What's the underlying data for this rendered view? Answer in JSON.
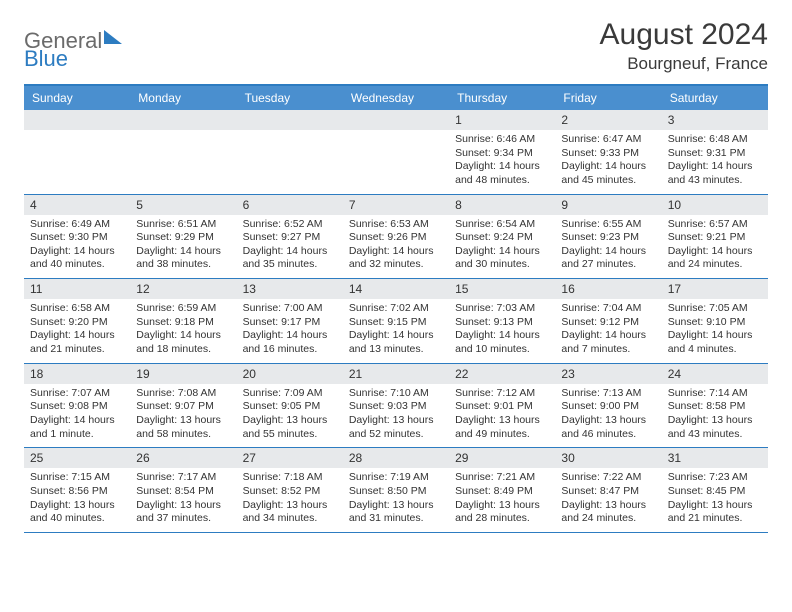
{
  "logo": {
    "part1": "General",
    "part2": "Blue"
  },
  "title": "August 2024",
  "location": "Bourgneuf, France",
  "colors": {
    "header_bar": "#4a8fcf",
    "rule": "#2d7cc1",
    "daynum_bg": "#e7e9eb",
    "text": "#333333",
    "title_text": "#3a3a3a",
    "logo_gray": "#6b6b6b",
    "logo_blue": "#2d7cc1",
    "background": "#ffffff"
  },
  "typography": {
    "title_fontsize": 30,
    "location_fontsize": 17,
    "dow_fontsize": 12,
    "daynum_fontsize": 12,
    "details_fontsize": 10.5
  },
  "days_of_week": [
    "Sunday",
    "Monday",
    "Tuesday",
    "Wednesday",
    "Thursday",
    "Friday",
    "Saturday"
  ],
  "weeks": [
    [
      {
        "daynum": "",
        "sunrise": "",
        "sunset": "",
        "daylight": ""
      },
      {
        "daynum": "",
        "sunrise": "",
        "sunset": "",
        "daylight": ""
      },
      {
        "daynum": "",
        "sunrise": "",
        "sunset": "",
        "daylight": ""
      },
      {
        "daynum": "",
        "sunrise": "",
        "sunset": "",
        "daylight": ""
      },
      {
        "daynum": "1",
        "sunrise": "Sunrise: 6:46 AM",
        "sunset": "Sunset: 9:34 PM",
        "daylight": "Daylight: 14 hours and 48 minutes."
      },
      {
        "daynum": "2",
        "sunrise": "Sunrise: 6:47 AM",
        "sunset": "Sunset: 9:33 PM",
        "daylight": "Daylight: 14 hours and 45 minutes."
      },
      {
        "daynum": "3",
        "sunrise": "Sunrise: 6:48 AM",
        "sunset": "Sunset: 9:31 PM",
        "daylight": "Daylight: 14 hours and 43 minutes."
      }
    ],
    [
      {
        "daynum": "4",
        "sunrise": "Sunrise: 6:49 AM",
        "sunset": "Sunset: 9:30 PM",
        "daylight": "Daylight: 14 hours and 40 minutes."
      },
      {
        "daynum": "5",
        "sunrise": "Sunrise: 6:51 AM",
        "sunset": "Sunset: 9:29 PM",
        "daylight": "Daylight: 14 hours and 38 minutes."
      },
      {
        "daynum": "6",
        "sunrise": "Sunrise: 6:52 AM",
        "sunset": "Sunset: 9:27 PM",
        "daylight": "Daylight: 14 hours and 35 minutes."
      },
      {
        "daynum": "7",
        "sunrise": "Sunrise: 6:53 AM",
        "sunset": "Sunset: 9:26 PM",
        "daylight": "Daylight: 14 hours and 32 minutes."
      },
      {
        "daynum": "8",
        "sunrise": "Sunrise: 6:54 AM",
        "sunset": "Sunset: 9:24 PM",
        "daylight": "Daylight: 14 hours and 30 minutes."
      },
      {
        "daynum": "9",
        "sunrise": "Sunrise: 6:55 AM",
        "sunset": "Sunset: 9:23 PM",
        "daylight": "Daylight: 14 hours and 27 minutes."
      },
      {
        "daynum": "10",
        "sunrise": "Sunrise: 6:57 AM",
        "sunset": "Sunset: 9:21 PM",
        "daylight": "Daylight: 14 hours and 24 minutes."
      }
    ],
    [
      {
        "daynum": "11",
        "sunrise": "Sunrise: 6:58 AM",
        "sunset": "Sunset: 9:20 PM",
        "daylight": "Daylight: 14 hours and 21 minutes."
      },
      {
        "daynum": "12",
        "sunrise": "Sunrise: 6:59 AM",
        "sunset": "Sunset: 9:18 PM",
        "daylight": "Daylight: 14 hours and 18 minutes."
      },
      {
        "daynum": "13",
        "sunrise": "Sunrise: 7:00 AM",
        "sunset": "Sunset: 9:17 PM",
        "daylight": "Daylight: 14 hours and 16 minutes."
      },
      {
        "daynum": "14",
        "sunrise": "Sunrise: 7:02 AM",
        "sunset": "Sunset: 9:15 PM",
        "daylight": "Daylight: 14 hours and 13 minutes."
      },
      {
        "daynum": "15",
        "sunrise": "Sunrise: 7:03 AM",
        "sunset": "Sunset: 9:13 PM",
        "daylight": "Daylight: 14 hours and 10 minutes."
      },
      {
        "daynum": "16",
        "sunrise": "Sunrise: 7:04 AM",
        "sunset": "Sunset: 9:12 PM",
        "daylight": "Daylight: 14 hours and 7 minutes."
      },
      {
        "daynum": "17",
        "sunrise": "Sunrise: 7:05 AM",
        "sunset": "Sunset: 9:10 PM",
        "daylight": "Daylight: 14 hours and 4 minutes."
      }
    ],
    [
      {
        "daynum": "18",
        "sunrise": "Sunrise: 7:07 AM",
        "sunset": "Sunset: 9:08 PM",
        "daylight": "Daylight: 14 hours and 1 minute."
      },
      {
        "daynum": "19",
        "sunrise": "Sunrise: 7:08 AM",
        "sunset": "Sunset: 9:07 PM",
        "daylight": "Daylight: 13 hours and 58 minutes."
      },
      {
        "daynum": "20",
        "sunrise": "Sunrise: 7:09 AM",
        "sunset": "Sunset: 9:05 PM",
        "daylight": "Daylight: 13 hours and 55 minutes."
      },
      {
        "daynum": "21",
        "sunrise": "Sunrise: 7:10 AM",
        "sunset": "Sunset: 9:03 PM",
        "daylight": "Daylight: 13 hours and 52 minutes."
      },
      {
        "daynum": "22",
        "sunrise": "Sunrise: 7:12 AM",
        "sunset": "Sunset: 9:01 PM",
        "daylight": "Daylight: 13 hours and 49 minutes."
      },
      {
        "daynum": "23",
        "sunrise": "Sunrise: 7:13 AM",
        "sunset": "Sunset: 9:00 PM",
        "daylight": "Daylight: 13 hours and 46 minutes."
      },
      {
        "daynum": "24",
        "sunrise": "Sunrise: 7:14 AM",
        "sunset": "Sunset: 8:58 PM",
        "daylight": "Daylight: 13 hours and 43 minutes."
      }
    ],
    [
      {
        "daynum": "25",
        "sunrise": "Sunrise: 7:15 AM",
        "sunset": "Sunset: 8:56 PM",
        "daylight": "Daylight: 13 hours and 40 minutes."
      },
      {
        "daynum": "26",
        "sunrise": "Sunrise: 7:17 AM",
        "sunset": "Sunset: 8:54 PM",
        "daylight": "Daylight: 13 hours and 37 minutes."
      },
      {
        "daynum": "27",
        "sunrise": "Sunrise: 7:18 AM",
        "sunset": "Sunset: 8:52 PM",
        "daylight": "Daylight: 13 hours and 34 minutes."
      },
      {
        "daynum": "28",
        "sunrise": "Sunrise: 7:19 AM",
        "sunset": "Sunset: 8:50 PM",
        "daylight": "Daylight: 13 hours and 31 minutes."
      },
      {
        "daynum": "29",
        "sunrise": "Sunrise: 7:21 AM",
        "sunset": "Sunset: 8:49 PM",
        "daylight": "Daylight: 13 hours and 28 minutes."
      },
      {
        "daynum": "30",
        "sunrise": "Sunrise: 7:22 AM",
        "sunset": "Sunset: 8:47 PM",
        "daylight": "Daylight: 13 hours and 24 minutes."
      },
      {
        "daynum": "31",
        "sunrise": "Sunrise: 7:23 AM",
        "sunset": "Sunset: 8:45 PM",
        "daylight": "Daylight: 13 hours and 21 minutes."
      }
    ]
  ]
}
